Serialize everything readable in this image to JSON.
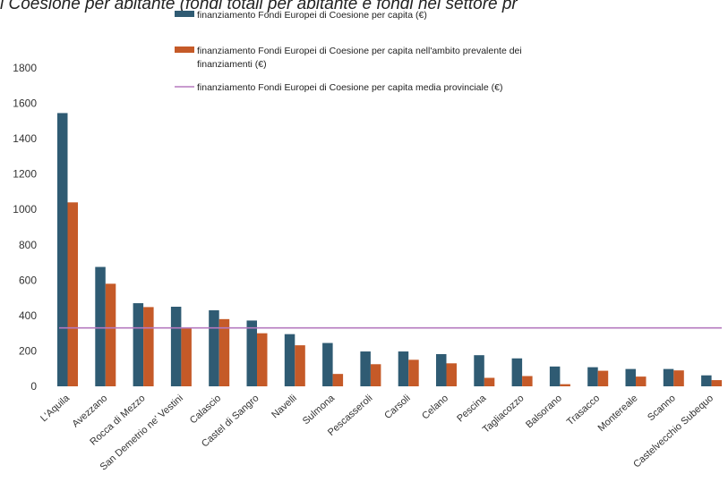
{
  "title": "i Coesione per abitante (fondi totali per abitante e fondi nel settore pr",
  "colors": {
    "series1": "#2f5b73",
    "series2": "#c55a28",
    "line": "#b57abf"
  },
  "chart_data": {
    "type": "bar",
    "categories": [
      "L'Aquila",
      "Avezzano",
      "Rocca di Mezzo",
      "San Demetrio ne' Vestini",
      "Calascio",
      "Castel di Sangro",
      "Navelli",
      "Sulmona",
      "Pescasseroli",
      "Carsoli",
      "Celano",
      "Pescina",
      "Tagliacozzo",
      "Balsorano",
      "Trasacco",
      "Montereale",
      "Scanno",
      "Castelvecchio Subequo"
    ],
    "series": [
      {
        "name": "finanziamento Fondi Europei di Coesione per capita (€)",
        "values": [
          1545,
          675,
          470,
          450,
          430,
          372,
          295,
          245,
          197,
          197,
          182,
          176,
          158,
          112,
          108,
          98,
          98,
          62
        ]
      },
      {
        "name": "finanziamento Fondi Europei di Coesione per capita nell'ambito prevalente dei finanziamenti (€)",
        "values": [
          1040,
          580,
          448,
          330,
          380,
          300,
          232,
          70,
          125,
          150,
          130,
          48,
          58,
          12,
          88,
          55,
          90,
          35
        ]
      }
    ],
    "line_series": {
      "name": "finanziamento Fondi Europei di Coesione per capita media provinciale (€)",
      "value": 330
    },
    "ylim": [
      0,
      1800
    ],
    "yticks": [
      "0",
      "200",
      "400",
      "600",
      "800",
      "1000",
      "1200",
      "1400",
      "1600",
      "1800"
    ],
    "legend_placement": "top",
    "grid": false
  }
}
